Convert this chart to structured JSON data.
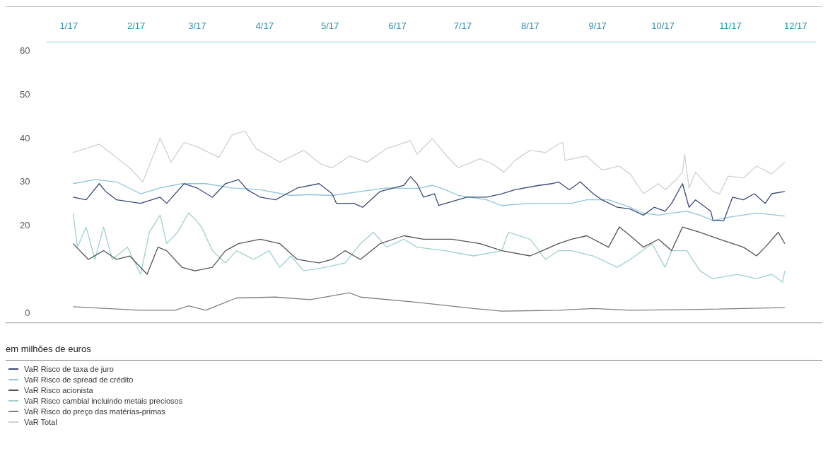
{
  "chart_data": {
    "type": "line",
    "xlim": [
      "2016-12-22",
      "2017-12-10"
    ],
    "xticks": [
      {
        "value": "2017-01",
        "label": "1/17"
      },
      {
        "value": "2017-02",
        "label": "2/17"
      },
      {
        "value": "2017-03",
        "label": "3/17"
      },
      {
        "value": "2017-04",
        "label": "4/17"
      },
      {
        "value": "2017-05",
        "label": "5/17"
      },
      {
        "value": "2017-06",
        "label": "6/17"
      },
      {
        "value": "2017-07",
        "label": "7/17"
      },
      {
        "value": "2017-08",
        "label": "8/17"
      },
      {
        "value": "2017-09",
        "label": "9/17"
      },
      {
        "value": "2017-10",
        "label": "10/17"
      },
      {
        "value": "2017-11",
        "label": "11/17"
      },
      {
        "value": "2017-12",
        "label": "12/17"
      }
    ],
    "ylim": [
      -2,
      62
    ],
    "yticks": [
      0,
      20,
      30,
      40,
      50,
      60
    ],
    "grid": false,
    "legend": "bottom",
    "marker": "none",
    "line_style": "solid",
    "annotations": [
      "em milhões de euros"
    ],
    "series": [
      {
        "name": "VaR Risco de taxa de juro",
        "color": "#3a4a78",
        "x": [
          "2017-01-03",
          "2017-01-09",
          "2017-01-15",
          "2017-01-18",
          "2017-01-23",
          "2017-02-03",
          "2017-02-12",
          "2017-02-15",
          "2017-02-23",
          "2017-03-01",
          "2017-03-08",
          "2017-03-14",
          "2017-03-20",
          "2017-03-24",
          "2017-03-30",
          "2017-04-06",
          "2017-04-16",
          "2017-04-26",
          "2017-05-02",
          "2017-05-04",
          "2017-05-12",
          "2017-05-16",
          "2017-05-24",
          "2017-06-04",
          "2017-06-07",
          "2017-06-10",
          "2017-06-13",
          "2017-06-18",
          "2017-06-20",
          "2017-06-26",
          "2017-07-03",
          "2017-07-12",
          "2017-07-19",
          "2017-07-25",
          "2017-08-05",
          "2017-08-11",
          "2017-08-14",
          "2017-08-19",
          "2017-08-24",
          "2017-08-30",
          "2017-09-03",
          "2017-09-10",
          "2017-09-16",
          "2017-09-22",
          "2017-09-27",
          "2017-10-02",
          "2017-10-05",
          "2017-10-10",
          "2017-10-13",
          "2017-10-16",
          "2017-10-23",
          "2017-10-24",
          "2017-10-29",
          "2017-11-02",
          "2017-11-07",
          "2017-11-12",
          "2017-11-17",
          "2017-11-20",
          "2017-11-26"
        ],
        "values": [
          26.6,
          26.0,
          29.7,
          27.9,
          26.0,
          25.2,
          26.6,
          25.2,
          29.7,
          28.7,
          26.6,
          29.7,
          30.6,
          28.3,
          26.6,
          26.0,
          28.7,
          29.7,
          27.4,
          25.2,
          25.2,
          24.3,
          27.9,
          29.3,
          31.3,
          29.7,
          26.6,
          27.4,
          24.7,
          25.6,
          26.6,
          26.6,
          27.4,
          28.3,
          29.3,
          29.7,
          30.1,
          28.3,
          30.1,
          27.4,
          26.0,
          24.3,
          23.9,
          22.5,
          24.3,
          23.4,
          25.2,
          29.7,
          24.3,
          26.0,
          23.4,
          21.3,
          21.3,
          26.6,
          26.0,
          27.4,
          25.2,
          27.4,
          27.9
        ]
      },
      {
        "name": "VaR Risco de spread de crédito",
        "color": "#8ec5da",
        "x": [
          "2017-01-03",
          "2017-01-13",
          "2017-01-23",
          "2017-02-03",
          "2017-02-12",
          "2017-02-22",
          "2017-03-05",
          "2017-03-17",
          "2017-03-30",
          "2017-04-13",
          "2017-04-22",
          "2017-05-02",
          "2017-05-15",
          "2017-05-27",
          "2017-06-10",
          "2017-06-17",
          "2017-06-23",
          "2017-06-29",
          "2017-07-12",
          "2017-07-19",
          "2017-08-01",
          "2017-08-14",
          "2017-08-20",
          "2017-08-27",
          "2017-09-06",
          "2017-09-16",
          "2017-09-22",
          "2017-09-29",
          "2017-10-05",
          "2017-10-12",
          "2017-10-18",
          "2017-10-24",
          "2017-10-31",
          "2017-11-13",
          "2017-11-26"
        ],
        "values": [
          29.7,
          30.6,
          30.1,
          27.4,
          28.7,
          29.7,
          29.7,
          28.7,
          28.3,
          27.0,
          27.2,
          27.0,
          27.9,
          28.7,
          28.6,
          29.3,
          28.3,
          27.0,
          26.0,
          24.7,
          25.2,
          25.2,
          25.2,
          26.0,
          26.0,
          24.3,
          23.0,
          22.5,
          23.0,
          23.4,
          22.5,
          21.3,
          22.0,
          23.0,
          22.3
        ]
      },
      {
        "name": "VaR Risco acionista",
        "color": "#555555",
        "x": [
          "2017-01-03",
          "2017-01-10",
          "2017-01-17",
          "2017-01-23",
          "2017-01-29",
          "2017-02-06",
          "2017-02-11",
          "2017-02-15",
          "2017-02-22",
          "2017-02-28",
          "2017-03-08",
          "2017-03-14",
          "2017-03-20",
          "2017-03-30",
          "2017-04-08",
          "2017-04-16",
          "2017-04-26",
          "2017-05-02",
          "2017-05-08",
          "2017-05-15",
          "2017-05-24",
          "2017-06-04",
          "2017-06-13",
          "2017-06-26",
          "2017-07-09",
          "2017-07-19",
          "2017-08-01",
          "2017-08-14",
          "2017-08-20",
          "2017-08-27",
          "2017-09-06",
          "2017-09-11",
          "2017-09-16",
          "2017-09-22",
          "2017-09-29",
          "2017-10-05",
          "2017-10-10",
          "2017-10-18",
          "2017-10-27",
          "2017-11-07",
          "2017-11-13",
          "2017-11-17",
          "2017-11-23",
          "2017-11-26"
        ],
        "values": [
          16.0,
          12.4,
          14.4,
          12.4,
          13.2,
          9.0,
          15.2,
          14.4,
          10.6,
          9.8,
          10.6,
          14.4,
          16.0,
          17.0,
          16.0,
          12.4,
          11.6,
          12.4,
          14.4,
          12.4,
          16.0,
          17.8,
          17.0,
          17.0,
          16.0,
          14.4,
          13.2,
          16.0,
          17.0,
          17.8,
          15.2,
          19.8,
          17.8,
          15.2,
          17.0,
          14.4,
          19.8,
          18.6,
          17.0,
          15.2,
          13.2,
          15.2,
          18.6,
          16.0
        ]
      },
      {
        "name": "VaR Risco cambial incluindo metais preciosos",
        "color": "#9fd0d0",
        "x": [
          "2017-01-03",
          "2017-01-05",
          "2017-01-09",
          "2017-01-13",
          "2017-01-17",
          "2017-01-21",
          "2017-01-28",
          "2017-02-03",
          "2017-02-07",
          "2017-02-12",
          "2017-02-15",
          "2017-02-20",
          "2017-02-25",
          "2017-02-28",
          "2017-03-03",
          "2017-03-08",
          "2017-03-14",
          "2017-03-19",
          "2017-03-27",
          "2017-04-03",
          "2017-04-08",
          "2017-04-13",
          "2017-04-19",
          "2017-04-29",
          "2017-05-08",
          "2017-05-15",
          "2017-05-21",
          "2017-05-27",
          "2017-06-04",
          "2017-06-10",
          "2017-06-23",
          "2017-07-06",
          "2017-07-19",
          "2017-07-22",
          "2017-08-01",
          "2017-08-08",
          "2017-08-14",
          "2017-08-20",
          "2017-08-30",
          "2017-09-10",
          "2017-09-16",
          "2017-09-26",
          "2017-10-02",
          "2017-10-05",
          "2017-10-12",
          "2017-10-18",
          "2017-10-24",
          "2017-11-04",
          "2017-11-13",
          "2017-11-20",
          "2017-11-25",
          "2017-11-26"
        ],
        "values": [
          23.0,
          15.2,
          19.8,
          12.4,
          19.8,
          12.4,
          15.2,
          9.0,
          18.6,
          22.5,
          16.0,
          18.6,
          23.0,
          21.6,
          19.8,
          14.4,
          11.6,
          14.4,
          12.4,
          14.4,
          10.6,
          13.2,
          9.8,
          10.6,
          11.6,
          16.0,
          18.6,
          15.2,
          17.0,
          15.2,
          14.4,
          13.2,
          14.4,
          18.6,
          17.0,
          12.4,
          14.4,
          14.4,
          13.2,
          10.6,
          12.4,
          16.0,
          10.6,
          14.4,
          14.4,
          9.8,
          8.0,
          9.0,
          8.0,
          9.0,
          7.2,
          9.8
        ]
      },
      {
        "name": "VaR Risco do preço das matérias-primas",
        "color": "#808080",
        "x": [
          "2017-01-03",
          "2017-02-03",
          "2017-02-19",
          "2017-02-25",
          "2017-03-05",
          "2017-03-11",
          "2017-03-19",
          "2017-04-06",
          "2017-04-22",
          "2017-05-10",
          "2017-05-15",
          "2017-06-10",
          "2017-07-06",
          "2017-07-19",
          "2017-08-14",
          "2017-08-30",
          "2017-09-16",
          "2017-10-18",
          "2017-11-26"
        ],
        "values": [
          1.6,
          0.8,
          0.8,
          1.8,
          0.8,
          2.0,
          3.6,
          3.8,
          3.2,
          4.8,
          3.8,
          2.6,
          1.2,
          0.6,
          0.8,
          1.2,
          0.8,
          1.0,
          1.4
        ]
      },
      {
        "name": "VaR Total",
        "color": "#d0d0d0",
        "x": [
          "2017-01-03",
          "2017-01-15",
          "2017-01-29",
          "2017-02-04",
          "2017-02-12",
          "2017-02-17",
          "2017-02-23",
          "2017-03-01",
          "2017-03-11",
          "2017-03-17",
          "2017-03-23",
          "2017-03-28",
          "2017-04-08",
          "2017-04-19",
          "2017-04-27",
          "2017-05-02",
          "2017-05-10",
          "2017-05-18",
          "2017-05-27",
          "2017-06-07",
          "2017-06-10",
          "2017-06-17",
          "2017-06-23",
          "2017-06-29",
          "2017-07-09",
          "2017-07-15",
          "2017-07-20",
          "2017-07-25",
          "2017-08-01",
          "2017-08-08",
          "2017-08-14",
          "2017-08-16",
          "2017-08-17",
          "2017-08-27",
          "2017-09-03",
          "2017-09-11",
          "2017-09-16",
          "2017-09-22",
          "2017-09-29",
          "2017-10-02",
          "2017-10-07",
          "2017-10-10",
          "2017-10-11",
          "2017-10-13",
          "2017-10-16",
          "2017-10-24",
          "2017-10-27",
          "2017-10-31",
          "2017-11-07",
          "2017-11-13",
          "2017-11-20",
          "2017-11-26"
        ],
        "values": [
          36.8,
          38.7,
          33.3,
          30.1,
          40.1,
          34.6,
          39.1,
          38.1,
          35.7,
          40.8,
          41.7,
          37.7,
          34.6,
          37.3,
          34.1,
          33.3,
          36.0,
          34.6,
          37.7,
          39.5,
          36.4,
          40.0,
          36.4,
          33.3,
          35.4,
          34.1,
          32.3,
          35.0,
          37.3,
          36.8,
          38.7,
          39.1,
          35.0,
          36.0,
          32.8,
          33.7,
          31.9,
          27.4,
          29.7,
          28.3,
          30.6,
          32.3,
          36.4,
          28.7,
          32.3,
          27.9,
          27.4,
          31.4,
          31.0,
          33.7,
          31.9,
          34.6
        ]
      }
    ]
  }
}
